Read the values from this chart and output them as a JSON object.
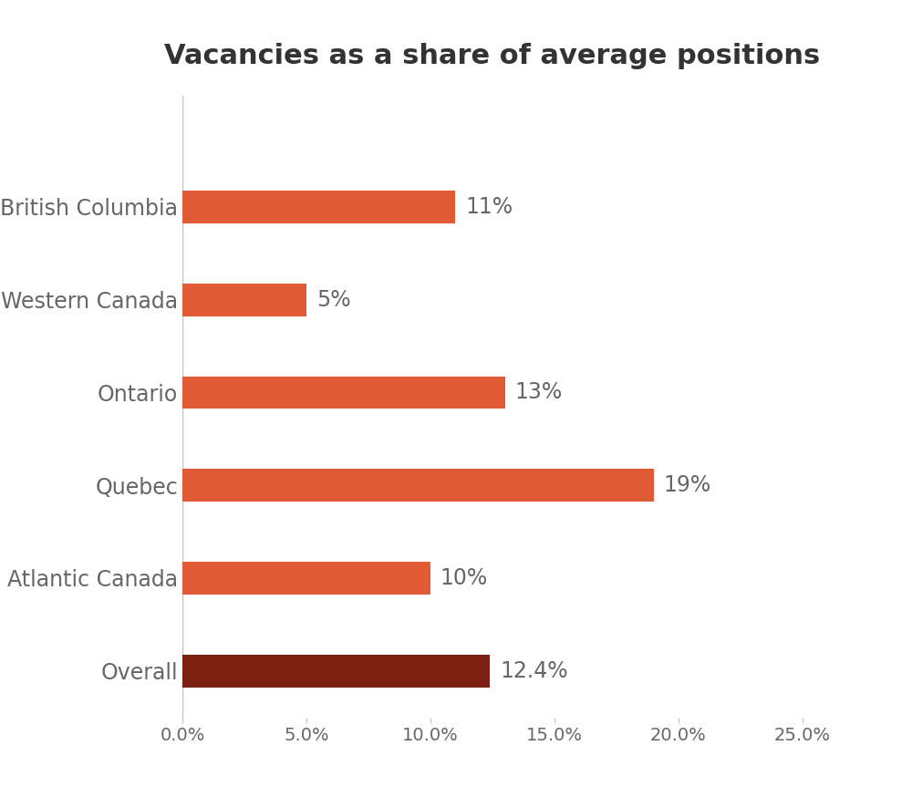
{
  "title": "Vacancies as a share of average positions",
  "categories": [
    "British Columbia",
    "Western Canada",
    "Ontario",
    "Quebec",
    "Atlantic Canada",
    "Overall"
  ],
  "values": [
    0.11,
    0.05,
    0.13,
    0.19,
    0.1,
    0.124
  ],
  "labels": [
    "11%",
    "5%",
    "13%",
    "19%",
    "10%",
    "12.4%"
  ],
  "bar_colors": [
    "#E05A35",
    "#E05A35",
    "#E05A35",
    "#E05A35",
    "#E05A35",
    "#7B2012"
  ],
  "xlim": [
    0,
    0.25
  ],
  "xticks": [
    0.0,
    0.05,
    0.1,
    0.15,
    0.2,
    0.25
  ],
  "xtick_labels": [
    "0.0%",
    "5.0%",
    "10.0%",
    "15.0%",
    "20.0%",
    "25.0%"
  ],
  "title_fontsize": 22,
  "label_fontsize": 17,
  "tick_fontsize": 14,
  "ytick_fontsize": 17,
  "background_color": "#ffffff",
  "text_color": "#666666",
  "bar_height": 0.35
}
